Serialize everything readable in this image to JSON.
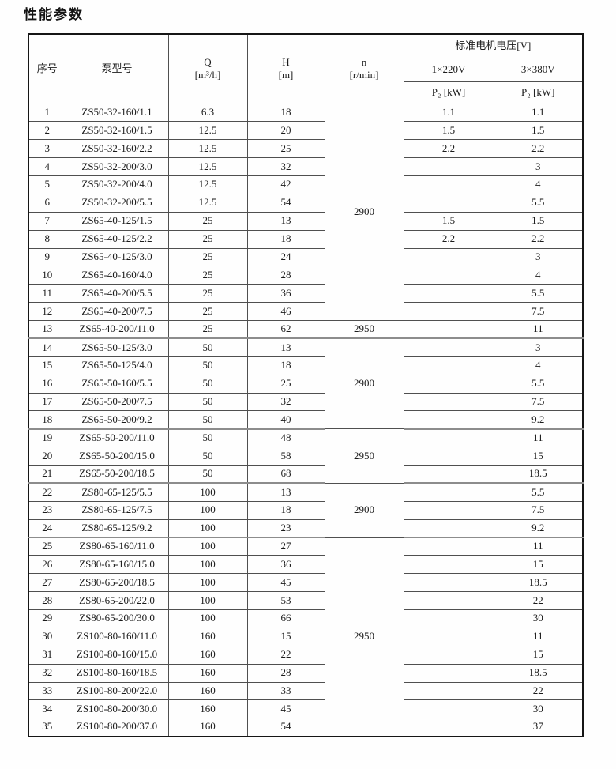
{
  "page_title": "性能参数",
  "table": {
    "headers": {
      "col_no": "序号",
      "col_model": "泵型号",
      "col_q_line1": "Q",
      "col_q_line2": "[m³/h]",
      "col_h_line1": "H",
      "col_h_line2": "[m]",
      "col_n_line1": "n",
      "col_n_line2": "[r/min]",
      "voltage_group": "标准电机电压[V]",
      "v220": "1×220V",
      "v380": "3×380V",
      "p2_label": "P₂ [kW]"
    },
    "rows": [
      {
        "no": "1",
        "model": "ZS50-32-160/1.1",
        "q": "6.3",
        "h": "18",
        "p220": "1.1",
        "p380": "1.1"
      },
      {
        "no": "2",
        "model": "ZS50-32-160/1.5",
        "q": "12.5",
        "h": "20",
        "p220": "1.5",
        "p380": "1.5"
      },
      {
        "no": "3",
        "model": "ZS50-32-160/2.2",
        "q": "12.5",
        "h": "25",
        "p220": "2.2",
        "p380": "2.2"
      },
      {
        "no": "4",
        "model": "ZS50-32-200/3.0",
        "q": "12.5",
        "h": "32",
        "p220": "",
        "p380": "3"
      },
      {
        "no": "5",
        "model": "ZS50-32-200/4.0",
        "q": "12.5",
        "h": "42",
        "p220": "",
        "p380": "4"
      },
      {
        "no": "6",
        "model": "ZS50-32-200/5.5",
        "q": "12.5",
        "h": "54",
        "p220": "",
        "p380": "5.5"
      },
      {
        "no": "7",
        "model": "ZS65-40-125/1.5",
        "q": "25",
        "h": "13",
        "p220": "1.5",
        "p380": "1.5"
      },
      {
        "no": "8",
        "model": "ZS65-40-125/2.2",
        "q": "25",
        "h": "18",
        "p220": "2.2",
        "p380": "2.2"
      },
      {
        "no": "9",
        "model": "ZS65-40-125/3.0",
        "q": "25",
        "h": "24",
        "p220": "",
        "p380": "3"
      },
      {
        "no": "10",
        "model": "ZS65-40-160/4.0",
        "q": "25",
        "h": "28",
        "p220": "",
        "p380": "4"
      },
      {
        "no": "11",
        "model": "ZS65-40-200/5.5",
        "q": "25",
        "h": "36",
        "p220": "",
        "p380": "5.5"
      },
      {
        "no": "12",
        "model": "ZS65-40-200/7.5",
        "q": "25",
        "h": "46",
        "p220": "",
        "p380": "7.5"
      },
      {
        "no": "13",
        "model": "ZS65-40-200/11.0",
        "q": "25",
        "h": "62",
        "p220": "",
        "p380": "11"
      },
      {
        "no": "14",
        "model": "ZS65-50-125/3.0",
        "q": "50",
        "h": "13",
        "p220": "",
        "p380": "3"
      },
      {
        "no": "15",
        "model": "ZS65-50-125/4.0",
        "q": "50",
        "h": "18",
        "p220": "",
        "p380": "4"
      },
      {
        "no": "16",
        "model": "ZS65-50-160/5.5",
        "q": "50",
        "h": "25",
        "p220": "",
        "p380": "5.5"
      },
      {
        "no": "17",
        "model": "ZS65-50-200/7.5",
        "q": "50",
        "h": "32",
        "p220": "",
        "p380": "7.5"
      },
      {
        "no": "18",
        "model": "ZS65-50-200/9.2",
        "q": "50",
        "h": "40",
        "p220": "",
        "p380": "9.2"
      },
      {
        "no": "19",
        "model": "ZS65-50-200/11.0",
        "q": "50",
        "h": "48",
        "p220": "",
        "p380": "11"
      },
      {
        "no": "20",
        "model": "ZS65-50-200/15.0",
        "q": "50",
        "h": "58",
        "p220": "",
        "p380": "15"
      },
      {
        "no": "21",
        "model": "ZS65-50-200/18.5",
        "q": "50",
        "h": "68",
        "p220": "",
        "p380": "18.5"
      },
      {
        "no": "22",
        "model": "ZS80-65-125/5.5",
        "q": "100",
        "h": "13",
        "p220": "",
        "p380": "5.5"
      },
      {
        "no": "23",
        "model": "ZS80-65-125/7.5",
        "q": "100",
        "h": "18",
        "p220": "",
        "p380": "7.5"
      },
      {
        "no": "24",
        "model": "ZS80-65-125/9.2",
        "q": "100",
        "h": "23",
        "p220": "",
        "p380": "9.2"
      },
      {
        "no": "25",
        "model": "ZS80-65-160/11.0",
        "q": "100",
        "h": "27",
        "p220": "",
        "p380": "11"
      },
      {
        "no": "26",
        "model": "ZS80-65-160/15.0",
        "q": "100",
        "h": "36",
        "p220": "",
        "p380": "15"
      },
      {
        "no": "27",
        "model": "ZS80-65-200/18.5",
        "q": "100",
        "h": "45",
        "p220": "",
        "p380": "18.5"
      },
      {
        "no": "28",
        "model": "ZS80-65-200/22.0",
        "q": "100",
        "h": "53",
        "p220": "",
        "p380": "22"
      },
      {
        "no": "29",
        "model": "ZS80-65-200/30.0",
        "q": "100",
        "h": "66",
        "p220": "",
        "p380": "30"
      },
      {
        "no": "30",
        "model": "ZS100-80-160/11.0",
        "q": "160",
        "h": "15",
        "p220": "",
        "p380": "11"
      },
      {
        "no": "31",
        "model": "ZS100-80-160/15.0",
        "q": "160",
        "h": "22",
        "p220": "",
        "p380": "15"
      },
      {
        "no": "32",
        "model": "ZS100-80-160/18.5",
        "q": "160",
        "h": "28",
        "p220": "",
        "p380": "18.5"
      },
      {
        "no": "33",
        "model": "ZS100-80-200/22.0",
        "q": "160",
        "h": "33",
        "p220": "",
        "p380": "22"
      },
      {
        "no": "34",
        "model": "ZS100-80-200/30.0",
        "q": "160",
        "h": "45",
        "p220": "",
        "p380": "30"
      },
      {
        "no": "35",
        "model": "ZS100-80-200/37.0",
        "q": "160",
        "h": "54",
        "p220": "",
        "p380": "37"
      }
    ],
    "n_groups": [
      {
        "value": "2900",
        "from": 1,
        "to": 12
      },
      {
        "value": "2950",
        "from": 13,
        "to": 13
      },
      {
        "value": "2900",
        "from": 14,
        "to": 18
      },
      {
        "value": "2950",
        "from": 19,
        "to": 21
      },
      {
        "value": "2900",
        "from": 22,
        "to": 24
      },
      {
        "value": "2950",
        "from": 25,
        "to": 35
      }
    ],
    "thick_after_rows": [
      13,
      18,
      21,
      24
    ]
  }
}
